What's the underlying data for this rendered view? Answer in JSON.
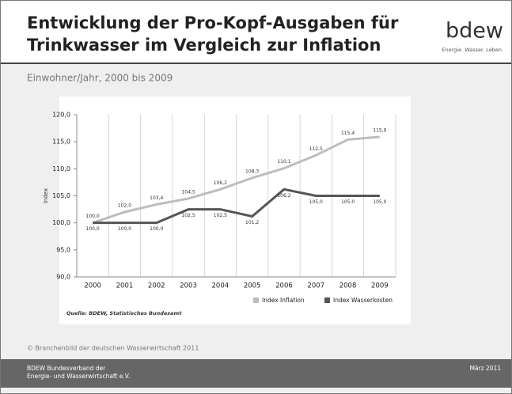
{
  "header": {
    "title_lines": [
      "Entwicklung der Pro-Kopf-Ausgaben für",
      "Trinkwasser im Vergleich zur Inflation"
    ],
    "logo": "bdew",
    "logo_tagline": "Energie. Wasser. Leben.",
    "subtitle": "Einwohner/Jahr, 2000 bis 2009"
  },
  "chart_data": {
    "type": "line",
    "categories": [
      "2000",
      "2001",
      "2002",
      "2003",
      "2004",
      "2005",
      "2006",
      "2007",
      "2008",
      "2009"
    ],
    "y_label": "Index",
    "ylim": [
      90,
      120
    ],
    "yticks": [
      {
        "value": 90,
        "label": "90,0"
      },
      {
        "value": 95,
        "label": "95,0"
      },
      {
        "value": 100,
        "label": "100,0"
      },
      {
        "value": 105,
        "label": "105,0"
      },
      {
        "value": 110,
        "label": "110,0"
      },
      {
        "value": 115,
        "label": "115,0"
      },
      {
        "value": 120,
        "label": "120,0"
      }
    ],
    "grid": false,
    "series": [
      {
        "name": "Index Inflation",
        "color": "#bdbdbd",
        "values": [
          100.0,
          102.0,
          103.4,
          104.5,
          106.2,
          108.3,
          110.1,
          112.5,
          115.4,
          115.9
        ],
        "value_labels": [
          "100,0",
          "102,0",
          "103,4",
          "104,5",
          "106,2",
          "108,3",
          "110,1",
          "112,5",
          "115,4",
          "115,9"
        ]
      },
      {
        "name": "Index Wasserkosten",
        "color": "#555555",
        "values": [
          100.0,
          100.0,
          100.0,
          102.5,
          102.5,
          101.2,
          106.2,
          105.0,
          105.0,
          105.0
        ],
        "value_labels": [
          "100,0",
          "100,0",
          "100,0",
          "102,5",
          "102,5",
          "101,2",
          "106,2",
          "105,0",
          "105,0",
          "105,0"
        ]
      }
    ],
    "source": "Quelle: BDEW, Statistisches Bundesamt"
  },
  "footer": {
    "copyright": "© Branchenbild der deutschen Wasserwirtschaft 2011",
    "org_lines": [
      "BDEW Bundesverband der",
      "Energie- und Wasserwirtschaft e.V."
    ],
    "date": "März 2011"
  }
}
